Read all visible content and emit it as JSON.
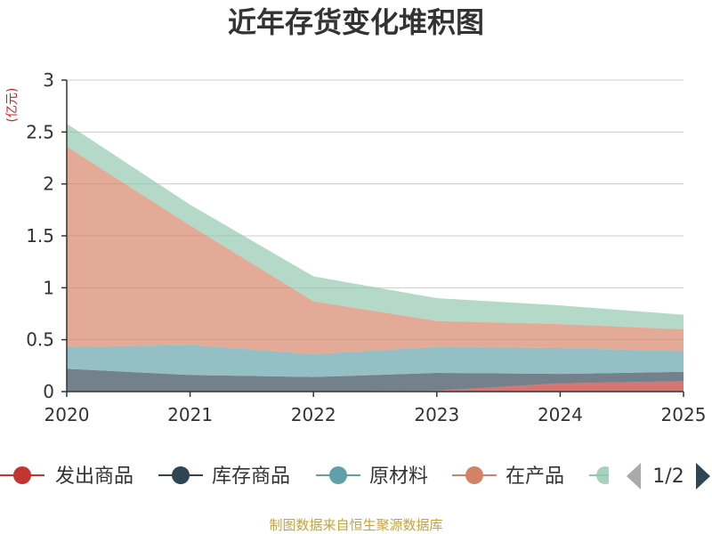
{
  "chart_data": {
    "type": "area",
    "stacked": true,
    "title": "近年存货变化堆积图",
    "unit_label": "(亿元)",
    "x": [
      "2020",
      "2021",
      "2022",
      "2023",
      "2024",
      "2025"
    ],
    "ylim": [
      0,
      3
    ],
    "yticks": [
      0,
      0.5,
      1,
      1.5,
      2,
      2.5,
      3
    ],
    "ytick_labels": [
      "0",
      "0.5",
      "1",
      "1.5",
      "2",
      "2.5",
      "3"
    ],
    "grid": true,
    "legend_position": "bottom",
    "series": [
      {
        "name": "发出商品",
        "color": "#c23531",
        "values": [
          0,
          0,
          0,
          0.01,
          0.08,
          0.1
        ]
      },
      {
        "name": "库存商品",
        "color": "#2f4554",
        "values": [
          0.22,
          0.16,
          0.14,
          0.17,
          0.09,
          0.09
        ]
      },
      {
        "name": "原材料",
        "color": "#61a0a8",
        "values": [
          0.21,
          0.29,
          0.22,
          0.25,
          0.25,
          0.2
        ]
      },
      {
        "name": "在产品",
        "color": "#d48265",
        "values": [
          1.93,
          1.15,
          0.51,
          0.25,
          0.23,
          0.21
        ]
      },
      {
        "name": "",
        "color": "#91c7ae",
        "values": [
          0.22,
          0.2,
          0.24,
          0.22,
          0.18,
          0.14
        ]
      }
    ],
    "legend_pager": "1/2",
    "source_text": "制图数据来自恒生聚源数据库"
  }
}
